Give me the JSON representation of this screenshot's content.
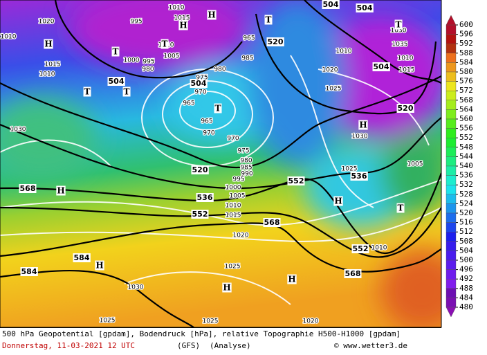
{
  "map": {
    "geopotential_labels": [
      504,
      504,
      520,
      504,
      504,
      504,
      520,
      520,
      536,
      552,
      568,
      536,
      552,
      568,
      552,
      584,
      584,
      568
    ],
    "pressure_labels": [
      1010,
      1015,
      995,
      1020,
      965,
      1010,
      1010,
      1010,
      1005,
      1000,
      995,
      980,
      1015,
      1010,
      975,
      980,
      985,
      970,
      965,
      965,
      970,
      970,
      975,
      980,
      985,
      990,
      995,
      1000,
      1005,
      1010,
      1015,
      1020,
      1025,
      1030,
      1025,
      1025,
      1020,
      1010,
      1005,
      1025,
      1030,
      1025,
      1020,
      1035,
      1010,
      1015,
      1030,
      1030
    ],
    "centers": [
      "H",
      "H",
      "H",
      "T",
      "T",
      "T",
      "T",
      "T",
      "T",
      "T",
      "T",
      "H",
      "H",
      "H",
      "H",
      "H",
      "H"
    ]
  },
  "legend": {
    "values": [
      600,
      596,
      592,
      588,
      584,
      580,
      576,
      572,
      568,
      564,
      560,
      556,
      552,
      548,
      544,
      540,
      536,
      532,
      528,
      524,
      520,
      516,
      512,
      508,
      504,
      500,
      496,
      492,
      488,
      484,
      480
    ]
  },
  "footer": {
    "line1": "500 hPa Geopotential [gpdam], Bodendruck [hPa], relative Topographie H500-H1000 [gpdam]",
    "date": "Donnerstag, 11-03-2021  12 UTC",
    "model": "(GFS)",
    "run": "(Analyse)",
    "credit": "© www.wetter3.de"
  }
}
